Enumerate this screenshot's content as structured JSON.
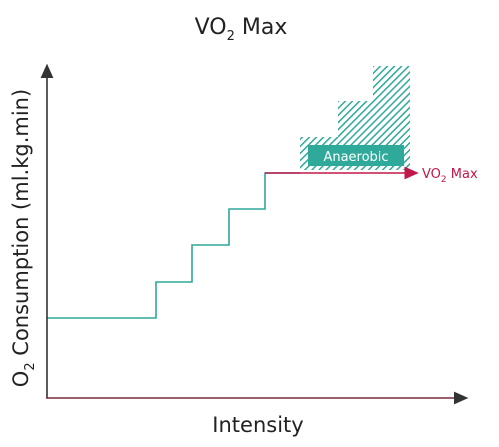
{
  "title": {
    "main": "VO",
    "sub": "2",
    "tail": " Max"
  },
  "x_axis": {
    "label": "Intensity"
  },
  "y_axis": {
    "sub_prefix": "O",
    "sub": "2",
    "rest": " Consumption (ml.kg.min)"
  },
  "anaerobic": {
    "label": "Anaerobic"
  },
  "vo2max_marker": {
    "main": "VO",
    "sub": "2",
    "tail": " Max"
  },
  "colors": {
    "step_line": "#2fa99a",
    "hatch": "#2fa99a",
    "vo2max": "#c0184a",
    "axis": "#333333",
    "x_axis": "#7a2a3a",
    "text": "#222222"
  }
}
